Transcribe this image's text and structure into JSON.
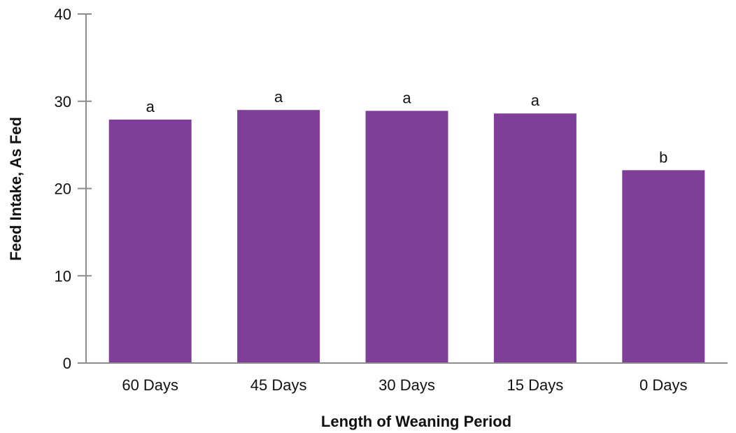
{
  "chart_data": {
    "type": "bar",
    "title": "",
    "xlabel": "Length of Weaning Period",
    "ylabel": "Feed Intake, As Fed",
    "categories": [
      "60 Days",
      "45 Days",
      "30 Days",
      "15 Days",
      "0 Days"
    ],
    "values": [
      27.9,
      29.0,
      28.9,
      28.6,
      22.1
    ],
    "data_labels": [
      "a",
      "a",
      "a",
      "a",
      "b"
    ],
    "ylim": [
      0,
      40
    ],
    "yticks": [
      0,
      10,
      20,
      30,
      40
    ],
    "ytick_labels": [
      "0",
      "10",
      "20",
      "30",
      "40"
    ],
    "grid": false,
    "legend": "none",
    "bar_color": "#7f3f98"
  }
}
